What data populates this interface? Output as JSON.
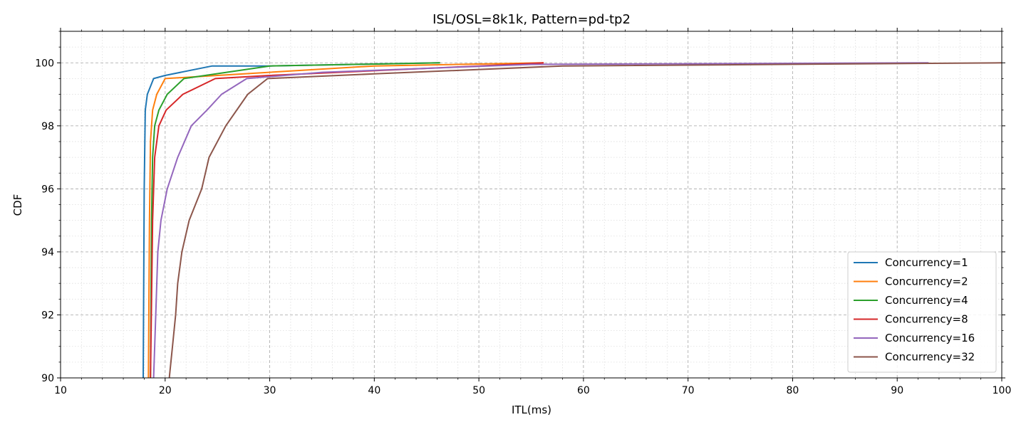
{
  "chart_data": {
    "type": "line",
    "title": "ISL/OSL=8k1k, Pattern=pd-tp2",
    "xlabel": "ITL(ms)",
    "ylabel": "CDF",
    "xlim": [
      10,
      100
    ],
    "ylim": [
      90,
      101
    ],
    "xticks": [
      10,
      20,
      30,
      40,
      50,
      60,
      70,
      80,
      90,
      100
    ],
    "yticks": [
      90,
      92,
      94,
      96,
      98,
      100
    ],
    "grid": true,
    "legend_position": "bottom-right",
    "series": [
      {
        "name": "Concurrency=1",
        "color": "#1f77b4",
        "x": [
          17.9,
          18.0,
          18.1,
          18.3,
          18.9,
          20.0,
          24.5,
          30.0,
          46.2
        ],
        "y": [
          90,
          96.0,
          98.5,
          99.0,
          99.5,
          99.6,
          99.9,
          99.9,
          100.0
        ]
      },
      {
        "name": "Concurrency=2",
        "color": "#ff7f0e",
        "x": [
          18.4,
          18.5,
          18.6,
          18.8,
          19.2,
          20.0,
          25.0,
          40.0,
          56.2
        ],
        "y": [
          90,
          95.0,
          97.5,
          98.5,
          99.0,
          99.5,
          99.6,
          99.9,
          100.0
        ]
      },
      {
        "name": "Concurrency=4",
        "color": "#2ca02c",
        "x": [
          18.6,
          18.7,
          18.8,
          19.0,
          19.4,
          20.2,
          21.8,
          30.0,
          46.3
        ],
        "y": [
          90,
          95.0,
          97.0,
          98.0,
          98.5,
          99.0,
          99.5,
          99.9,
          100.0
        ]
      },
      {
        "name": "Concurrency=8",
        "color": "#d62728",
        "x": [
          18.6,
          18.8,
          19.0,
          19.4,
          20.1,
          21.7,
          24.8,
          30.0,
          50.0,
          56.2
        ],
        "y": [
          90,
          95.0,
          97.0,
          98.0,
          98.5,
          99.0,
          99.5,
          99.6,
          99.9,
          100.0
        ]
      },
      {
        "name": "Concurrency=16",
        "color": "#9467bd",
        "x": [
          18.9,
          19.1,
          19.3,
          19.6,
          20.2,
          21.2,
          22.5,
          24.0,
          25.4,
          27.8,
          35.0,
          55.0,
          93.0
        ],
        "y": [
          90,
          92.0,
          94.0,
          95.0,
          96.0,
          97.0,
          98.0,
          98.5,
          99.0,
          99.5,
          99.7,
          99.95,
          100.0
        ]
      },
      {
        "name": "Concurrency=32",
        "color": "#8c564b",
        "x": [
          20.4,
          20.7,
          21.0,
          21.2,
          21.6,
          22.3,
          23.5,
          24.2,
          25.8,
          27.9,
          29.8,
          40.0,
          58.0,
          100.0
        ],
        "y": [
          90,
          91.0,
          92.0,
          93.0,
          94.0,
          95.0,
          96.0,
          97.0,
          98.0,
          99.0,
          99.5,
          99.65,
          99.9,
          100.0
        ]
      }
    ]
  }
}
